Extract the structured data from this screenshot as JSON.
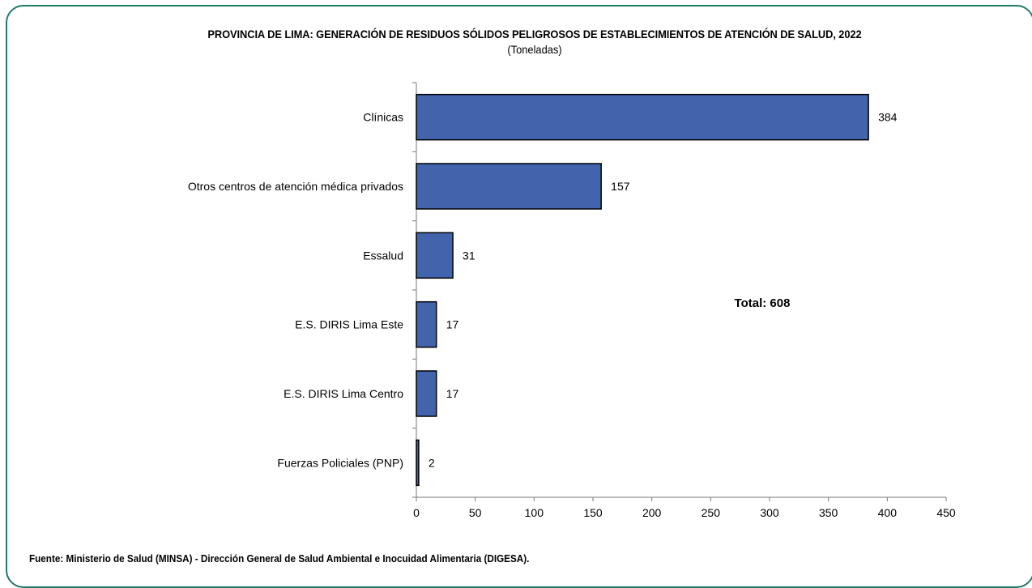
{
  "chart_data": {
    "type": "bar",
    "orientation": "horizontal",
    "title": "PROVINCIA DE LIMA: GENERACIÓN DE RESIDUOS SÓLIDOS PELIGROSOS DE ESTABLECIMIENTOS DE ATENCIÓN DE SALUD, 2022",
    "subtitle": "(Toneladas)",
    "categories": [
      "Clínicas",
      "Otros centros de atención médica privados",
      "Essalud",
      "E.S. DIRIS Lima Este",
      "E.S. DIRIS Lima Centro",
      "Fuerzas Policiales (PNP)"
    ],
    "values": [
      384,
      157,
      31,
      17,
      17,
      2
    ],
    "data_labels": [
      "384",
      "157",
      "31",
      "17",
      "17",
      "2"
    ],
    "xlim": [
      0,
      450
    ],
    "xticks": [
      "0",
      "50",
      "100",
      "150",
      "200",
      "250",
      "300",
      "350",
      "400",
      "450"
    ],
    "grid": false,
    "annotation": "Total: 608",
    "bar_color": "#4264ac",
    "bar_edge_color": "#000000"
  },
  "source": "Fuente: Ministerio de Salud (MINSA) - Dirección General de Salud Ambiental e Inocuidad Alimentaria (DIGESA)."
}
